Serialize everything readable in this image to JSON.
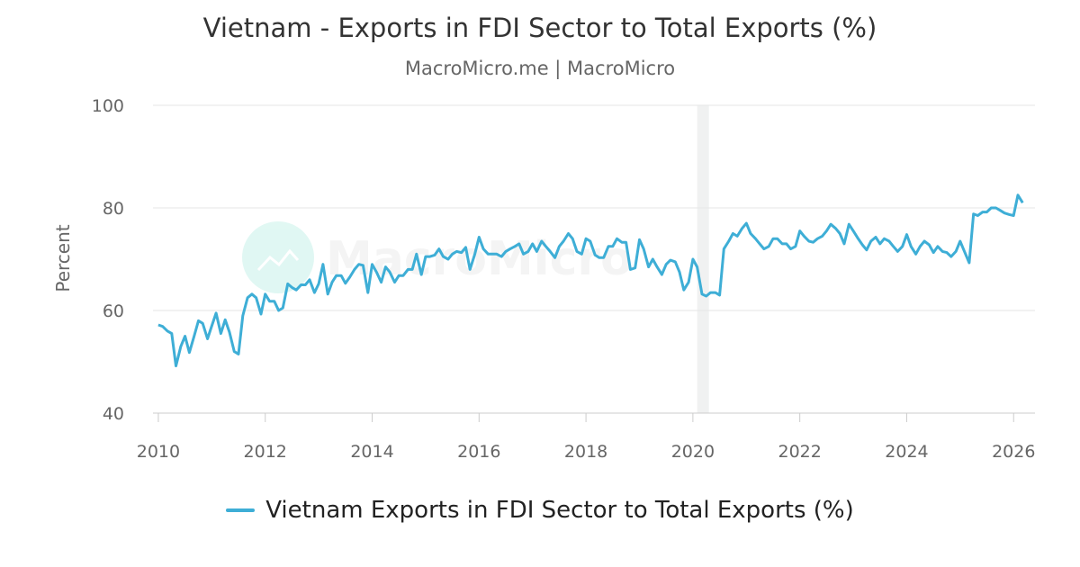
{
  "chart_data": {
    "type": "line",
    "title": "Vietnam - Exports in FDI Sector to Total Exports (%)",
    "subtitle": "MacroMicro.me | MacroMicro",
    "ylabel": "Percent",
    "xlabel": "",
    "ylim": [
      40,
      100
    ],
    "yticks": [
      40,
      60,
      80,
      100
    ],
    "xlim": [
      2009.9,
      2026.4
    ],
    "xticks": [
      2010,
      2012,
      2014,
      2016,
      2018,
      2020,
      2022,
      2024,
      2026
    ],
    "grid": true,
    "legend_position": "bottom",
    "shaded_period": [
      2020.08,
      2020.3
    ],
    "watermark": "MacroMicro",
    "series": [
      {
        "name": "Vietnam Exports in FDI Sector to Total Exports (%)",
        "color": "#3eaed6",
        "x": [
          2010.0,
          2010.08,
          2010.17,
          2010.25,
          2010.33,
          2010.42,
          2010.5,
          2010.58,
          2010.67,
          2010.75,
          2010.83,
          2010.92,
          2011.0,
          2011.08,
          2011.17,
          2011.25,
          2011.33,
          2011.42,
          2011.5,
          2011.58,
          2011.67,
          2011.75,
          2011.83,
          2011.92,
          2012.0,
          2012.08,
          2012.17,
          2012.25,
          2012.33,
          2012.42,
          2012.5,
          2012.58,
          2012.67,
          2012.75,
          2012.83,
          2012.92,
          2013.0,
          2013.08,
          2013.17,
          2013.25,
          2013.33,
          2013.42,
          2013.5,
          2013.58,
          2013.67,
          2013.75,
          2013.83,
          2013.92,
          2014.0,
          2014.08,
          2014.17,
          2014.25,
          2014.33,
          2014.42,
          2014.5,
          2014.58,
          2014.67,
          2014.75,
          2014.83,
          2014.92,
          2015.0,
          2015.08,
          2015.17,
          2015.25,
          2015.33,
          2015.42,
          2015.5,
          2015.58,
          2015.67,
          2015.75,
          2015.83,
          2015.92,
          2016.0,
          2016.08,
          2016.17,
          2016.25,
          2016.33,
          2016.42,
          2016.5,
          2016.58,
          2016.67,
          2016.75,
          2016.83,
          2016.92,
          2017.0,
          2017.08,
          2017.17,
          2017.25,
          2017.33,
          2017.42,
          2017.5,
          2017.58,
          2017.67,
          2017.75,
          2017.83,
          2017.92,
          2018.0,
          2018.08,
          2018.17,
          2018.25,
          2018.33,
          2018.42,
          2018.5,
          2018.58,
          2018.67,
          2018.75,
          2018.83,
          2018.92,
          2019.0,
          2019.08,
          2019.17,
          2019.25,
          2019.33,
          2019.42,
          2019.5,
          2019.58,
          2019.67,
          2019.75,
          2019.83,
          2019.92,
          2020.0,
          2020.08,
          2020.17,
          2020.25,
          2020.33,
          2020.42,
          2020.5,
          2020.58,
          2020.67,
          2020.75,
          2020.83,
          2020.92,
          2021.0,
          2021.08,
          2021.17,
          2021.25,
          2021.33,
          2021.42,
          2021.5,
          2021.58,
          2021.67,
          2021.75,
          2021.83,
          2021.92,
          2022.0,
          2022.08,
          2022.17,
          2022.25,
          2022.33,
          2022.42,
          2022.5,
          2022.58,
          2022.67,
          2022.75,
          2022.83,
          2022.92,
          2023.0,
          2023.08,
          2023.17,
          2023.25,
          2023.33,
          2023.42,
          2023.5,
          2023.58,
          2023.67,
          2023.75,
          2023.83,
          2023.92,
          2024.0,
          2024.08,
          2024.17,
          2024.25,
          2024.33,
          2024.42,
          2024.5,
          2024.58,
          2024.67,
          2024.75,
          2024.83,
          2024.92,
          2025.0,
          2025.08,
          2025.17,
          2025.25,
          2025.33,
          2025.42,
          2025.5,
          2025.58,
          2025.67,
          2025.75,
          2025.83,
          2025.92,
          2026.0,
          2026.08,
          2026.17
        ],
        "values": [
          57.2,
          56.9,
          56.0,
          55.5,
          49.2,
          53.0,
          55.0,
          51.8,
          55.0,
          58.0,
          57.5,
          54.5,
          57.0,
          59.5,
          55.5,
          58.2,
          55.8,
          52.0,
          51.5,
          59.0,
          62.5,
          63.2,
          62.5,
          59.3,
          63.2,
          61.8,
          61.8,
          60.0,
          60.5,
          65.2,
          64.5,
          64.0,
          65.0,
          65.0,
          66.0,
          63.5,
          65.2,
          69.0,
          63.2,
          65.5,
          66.8,
          66.8,
          65.3,
          66.5,
          68.0,
          69.0,
          68.8,
          63.5,
          69.0,
          67.5,
          65.5,
          68.5,
          67.5,
          65.5,
          66.8,
          66.8,
          68.0,
          68.0,
          71.0,
          67.0,
          70.5,
          70.5,
          70.8,
          72.0,
          70.5,
          70.0,
          71.0,
          71.5,
          71.3,
          72.3,
          68.0,
          71.0,
          74.3,
          72.0,
          71.0,
          71.0,
          71.0,
          70.5,
          71.5,
          72.0,
          72.5,
          73.0,
          71.0,
          71.5,
          73.0,
          71.5,
          73.5,
          72.5,
          71.5,
          70.3,
          72.5,
          73.5,
          75.0,
          74.0,
          71.5,
          71.0,
          74.0,
          73.5,
          70.8,
          70.3,
          70.3,
          72.5,
          72.5,
          74.0,
          73.3,
          73.3,
          68.0,
          68.3,
          73.8,
          72.0,
          68.5,
          70.0,
          68.5,
          67.0,
          69.0,
          69.8,
          69.5,
          67.5,
          64.0,
          65.5,
          70.0,
          68.5,
          63.2,
          62.8,
          63.5,
          63.5,
          63.0,
          72.0,
          73.5,
          75.0,
          74.5,
          76.0,
          77.0,
          75.0,
          74.0,
          73.0,
          72.0,
          72.5,
          74.0,
          74.0,
          73.0,
          73.0,
          72.0,
          72.5,
          75.5,
          74.5,
          73.5,
          73.3,
          74.0,
          74.5,
          75.5,
          76.8,
          76.0,
          75.0,
          73.0,
          76.8,
          75.5,
          74.2,
          72.8,
          71.8,
          73.5,
          74.3,
          73.0,
          74.0,
          73.5,
          72.5,
          71.5,
          72.5,
          74.8,
          72.5,
          71.0,
          72.5,
          73.5,
          72.8,
          71.3,
          72.5,
          71.5,
          71.3,
          70.5,
          71.5,
          73.5,
          71.5,
          69.3,
          78.8,
          78.5,
          79.2,
          79.2,
          80.0,
          80.0,
          79.5,
          79.0,
          78.7,
          78.5,
          82.5,
          81.0
        ]
      }
    ]
  }
}
